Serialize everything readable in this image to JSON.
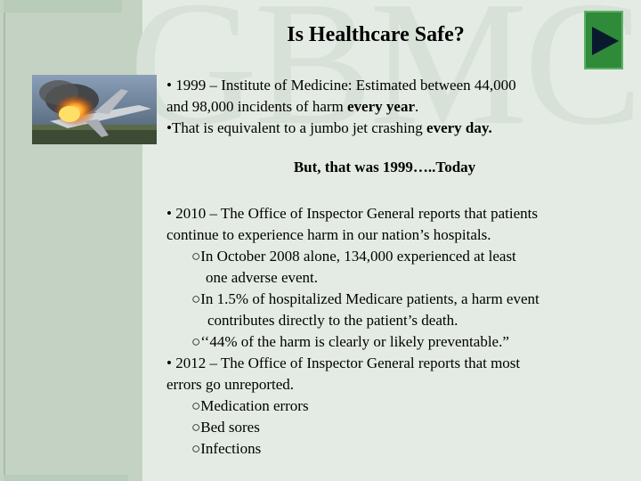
{
  "watermark": "GBMC",
  "title": "Is Healthcare Safe?",
  "icons": {
    "next": "play-triangle-icon",
    "photo": "plane-crash-photo"
  },
  "colors": {
    "button": "#2f8a3a",
    "background": "#e4ebe4",
    "band": "#c3d2c3"
  },
  "block1": {
    "line1": "• 1999 – Institute of Medicine:  Estimated between 44,000",
    "line2a": "and 98,000 incidents of harm ",
    "line2b": "every year",
    "line2c": ".",
    "line3a": "•That is equivalent to a jumbo jet crashing ",
    "line3b": "every day."
  },
  "center": "But, that was 1999…..Today",
  "block2": {
    "l1": "• 2010 – The Office of Inspector General reports that patients",
    "l2": "continue to experience harm in our nation’s hospitals.",
    "l3": "○In October 2008 alone, 134,000 experienced at least",
    "l4": "one adverse event.",
    "l5": "○In 1.5% of hospitalized Medicare patients, a harm event",
    "l6": "contributes directly to the patient’s death.",
    "l7": "○‘‘44% of the harm is clearly or likely preventable.”",
    "l8": "• 2012 – The Office of Inspector General reports that most",
    "l9": "errors go unreported.",
    "l10": "○Medication errors",
    "l11": "○Bed sores",
    "l12": "○Infections"
  }
}
